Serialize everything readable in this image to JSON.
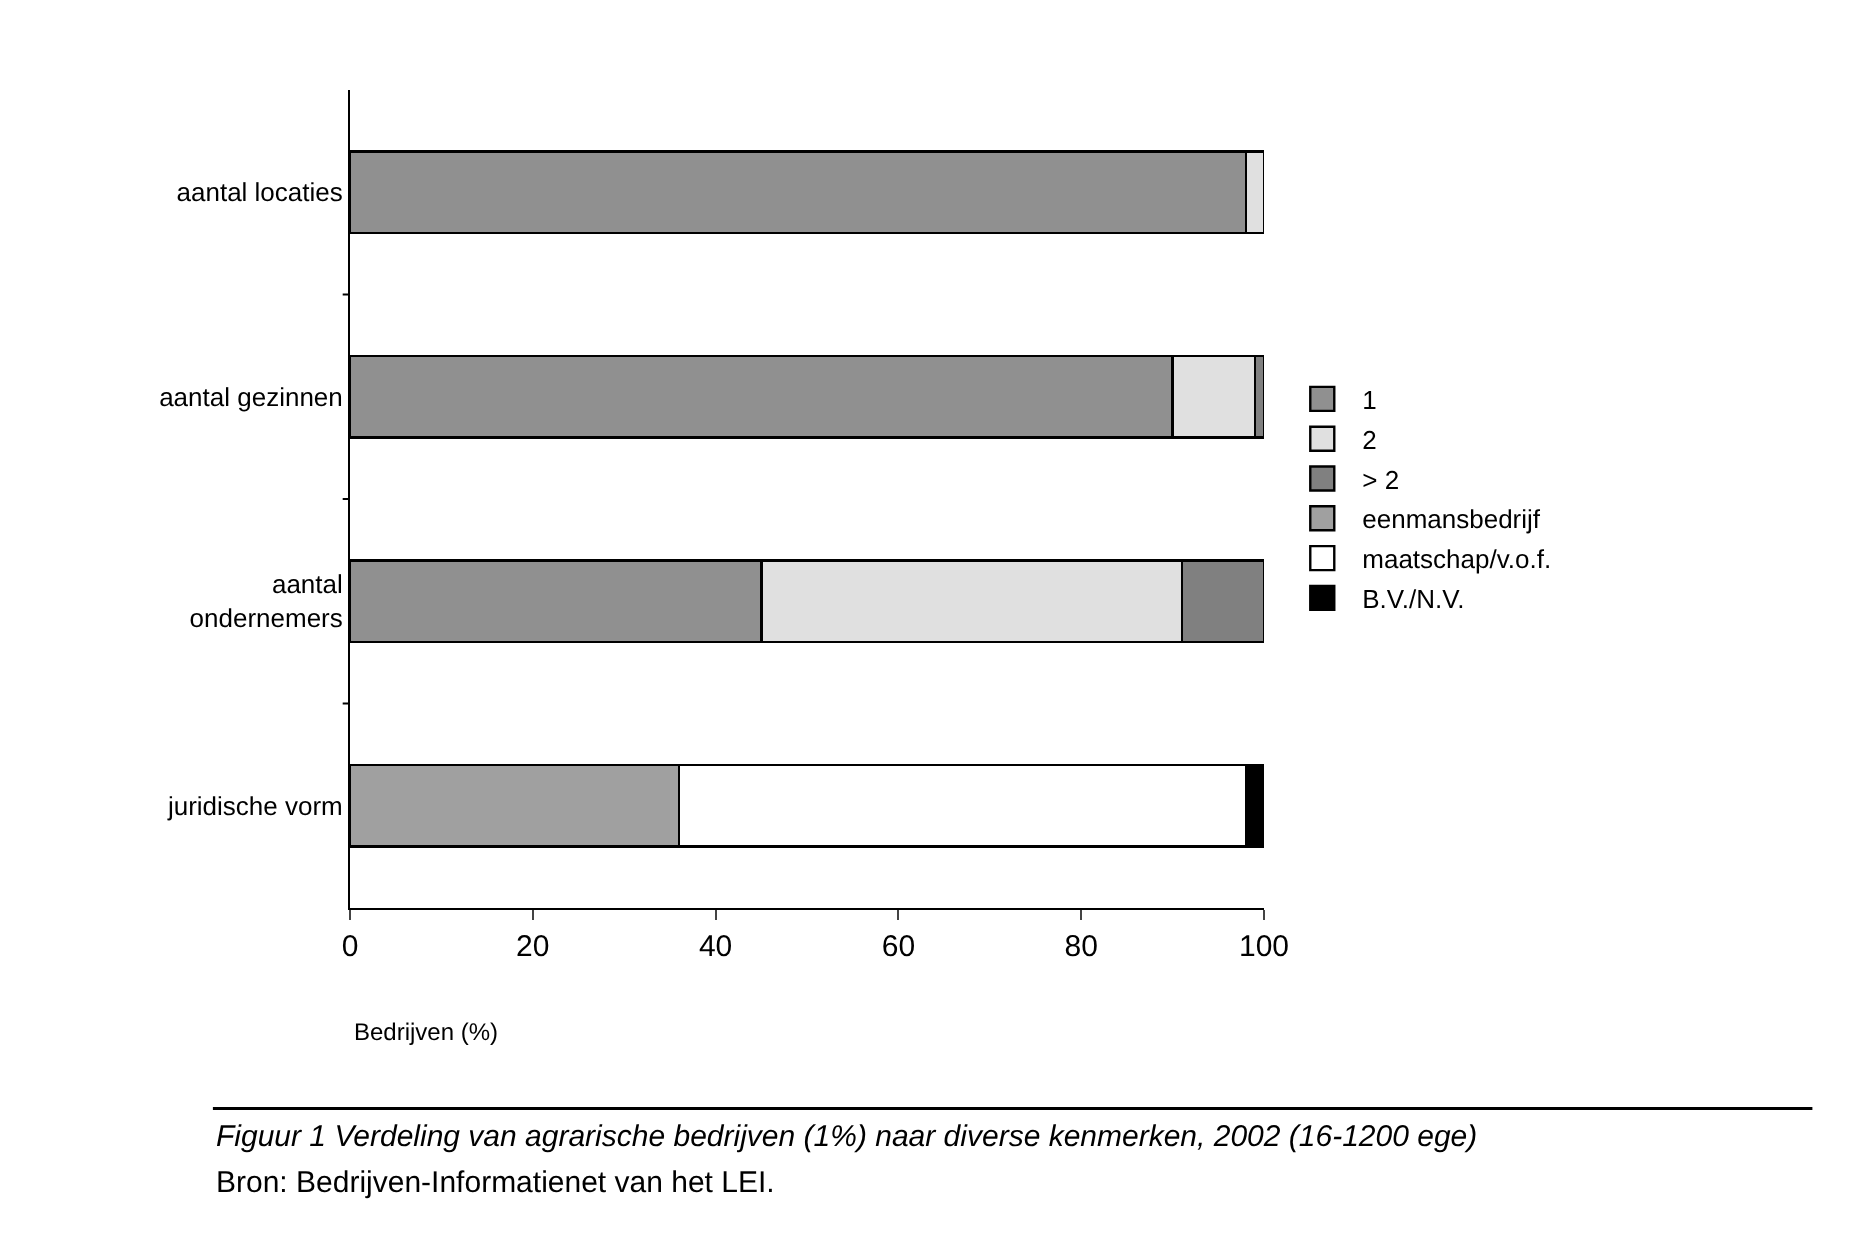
{
  "chart_data": {
    "type": "bar",
    "orientation": "horizontal",
    "stacked": true,
    "categories": [
      "aantal locaties",
      "aantal gezinnen",
      "aantal\nondernemers",
      "juridische vorm"
    ],
    "series": [
      {
        "name": "1",
        "color": "#909090",
        "values": [
          98,
          90,
          45,
          null
        ]
      },
      {
        "name": "2",
        "color": "#e0e0e0",
        "values": [
          2,
          9,
          46,
          null
        ]
      },
      {
        "name": "> 2",
        "color": "#808080",
        "values": [
          null,
          1,
          9,
          null
        ]
      },
      {
        "name": "eenmansbedrijf",
        "color": "#a0a0a0",
        "values": [
          null,
          null,
          null,
          36
        ]
      },
      {
        "name": "maatschap/v.o.f.",
        "color": "#ffffff",
        "values": [
          null,
          null,
          null,
          62
        ]
      },
      {
        "name": "B.V./N.V.",
        "color": "#000000",
        "values": [
          null,
          null,
          null,
          2
        ]
      }
    ],
    "xlim": [
      0,
      100
    ],
    "xticks": [
      0,
      20,
      40,
      60,
      80,
      100
    ],
    "xlabel": "Bedrijven (%)",
    "legend": "right",
    "annotations": [
      "Figuur 1 Verdeling van agrarische bedrijven (1%) naar diverse kenmerken, 2002 (16-1200 ege)",
      "Bron: Bedrijven-Informatienet van het LEI."
    ]
  }
}
